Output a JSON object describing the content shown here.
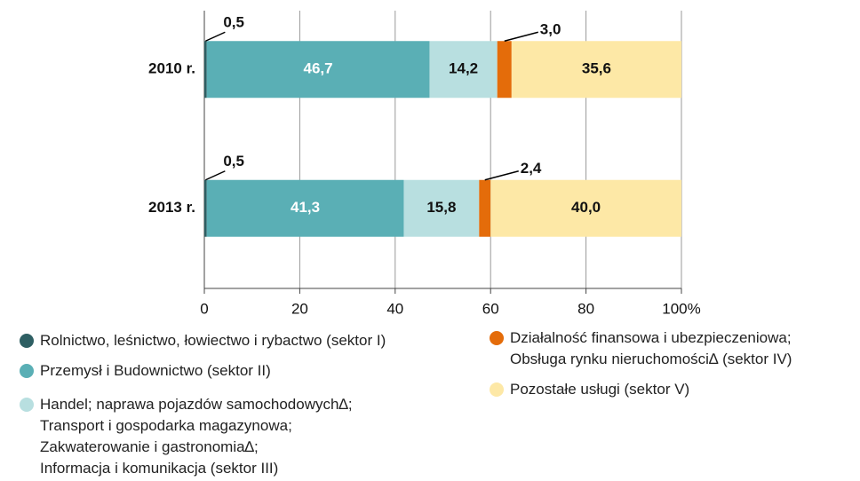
{
  "chart_data": {
    "type": "stacked-bar-horizontal",
    "categories": [
      "2010 r.",
      "2013 r."
    ],
    "series": [
      {
        "name": "Rolnictwo, leśnictwo, łowiectwo i rybactwo (sektor I)",
        "color": "#2e5f63",
        "values": [
          0.5,
          0.5
        ],
        "value_labels": [
          "0,5",
          "0,5"
        ]
      },
      {
        "name": "Przemysł i Budownictwo (sektor II)",
        "color": "#5aafb5",
        "values": [
          46.7,
          41.3
        ],
        "value_labels": [
          "46,7",
          "41,3"
        ]
      },
      {
        "name": "Handel; naprawa pojazdów samochodowych∆;\nTransport i gospodarka magazynowa;\nZakwaterowanie i gastronomia∆;\nInformacja i komunikacja (sektor III)",
        "color": "#b8dfe0",
        "values": [
          14.2,
          15.8
        ],
        "value_labels": [
          "14,2",
          "15,8"
        ]
      },
      {
        "name": "Działalność finansowa i ubezpieczeniowa;\nObsługa rynku nieruchomości∆ (sektor IV)",
        "color": "#e46c0a",
        "values": [
          3.0,
          2.4
        ],
        "value_labels": [
          "3,0",
          "2,4"
        ]
      },
      {
        "name": "Pozostałe usługi (sektor V)",
        "color": "#fde8a6",
        "values": [
          35.6,
          40.0
        ],
        "value_labels": [
          "35,6",
          "40,0"
        ]
      }
    ],
    "xlim": [
      0,
      100
    ],
    "xticks": [
      0,
      20,
      40,
      60,
      80,
      {
        "value": 100,
        "label": "100%"
      }
    ],
    "grid": true
  }
}
